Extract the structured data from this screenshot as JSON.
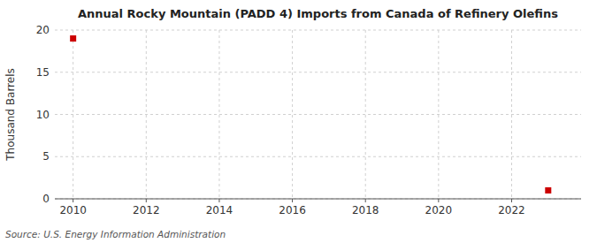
{
  "chart_data": {
    "type": "scatter",
    "title": "Annual Rocky Mountain (PADD 4) Imports from Canada of Refinery Olefins",
    "y_label": "Thousand Barrels",
    "annotations": [
      "Source: U.S. Energy Information Administration"
    ],
    "x": [
      2010,
      2023
    ],
    "values": [
      19,
      1
    ],
    "color": "#cc0000",
    "marker": "square",
    "xlim": [
      2009.5,
      2023.9
    ],
    "xticks": [
      2010,
      2012,
      2014,
      2016,
      2018,
      2020,
      2022
    ],
    "ylim": [
      0,
      20
    ],
    "yticks": [
      0,
      5,
      10,
      15,
      20
    ],
    "grid": true
  }
}
